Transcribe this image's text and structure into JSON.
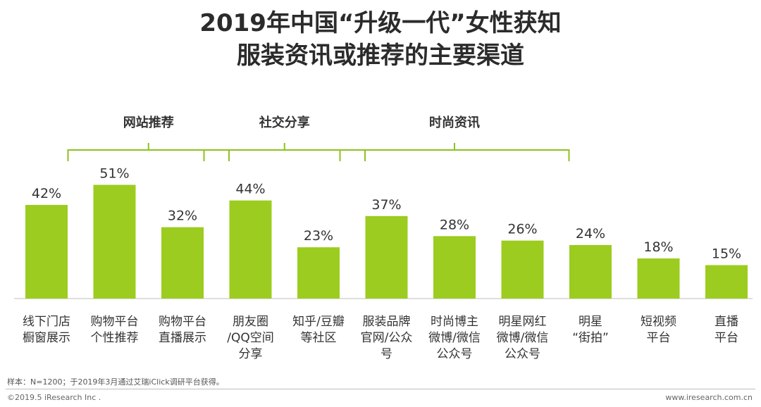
{
  "chart_data": {
    "type": "bar",
    "title_line1": "2019年中国“升级一代”女性获知",
    "title_line2": "服装资讯或推荐的主要渠道",
    "categories": [
      "线下门店\n橱窗展示",
      "购物平台\n个性推荐",
      "购物平台\n直播展示",
      "朋友圈\n/QQ空间\n分享",
      "知乎/豆瓣\n等社区",
      "服装品牌\n官网/公众\n号",
      "时尚博主\n微博/微信\n公众号",
      "明星网红\n微博/微信\n公众号",
      "明星\n“街拍”",
      "短视频\n平台",
      "直播\n平台"
    ],
    "values": [
      42,
      51,
      32,
      44,
      23,
      37,
      28,
      26,
      24,
      18,
      15
    ],
    "value_labels": [
      "42%",
      "51%",
      "32%",
      "44%",
      "23%",
      "37%",
      "28%",
      "26%",
      "24%",
      "18%",
      "15%"
    ],
    "unit": "%",
    "ylim": [
      0,
      60
    ],
    "groups": [
      {
        "label": "网站推荐",
        "start": 1,
        "end": 2
      },
      {
        "label": "社交分享",
        "start": 3,
        "end": 4
      },
      {
        "label": "时尚资讯",
        "start": 5,
        "end": 7
      }
    ],
    "bar_color": "#9ccc1f",
    "bracket_color": "#8dc21f"
  },
  "note": "样本：N=1200；于2019年3月通过艾瑞iClick调研平台获得。",
  "copyright": "©2019.5 iResearch Inc .",
  "website": "www.iresearch.com.cn"
}
